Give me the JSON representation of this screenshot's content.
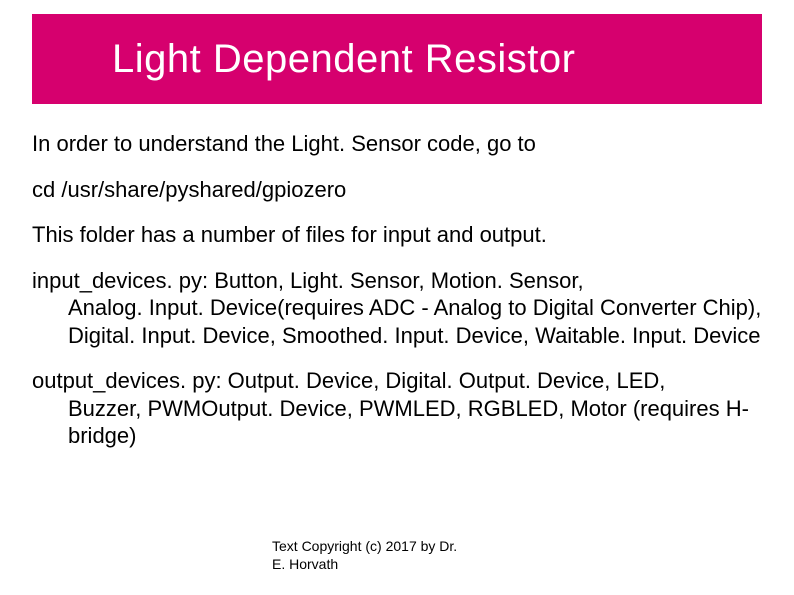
{
  "title_bar": {
    "background_color": "#d6006e",
    "title": "Light Dependent Resistor",
    "title_color": "#ffffff",
    "title_fontsize": 40
  },
  "content": {
    "fontsize": 22,
    "color": "#000000",
    "para1": "In order to understand the Light. Sensor code, go to",
    "para2": "cd /usr/share/pyshared/gpiozero",
    "para3": "This folder has a number of files for input and output.",
    "para4_lead": "input_devices. py: Button, Light. Sensor, Motion. Sensor,",
    "para4_cont": "Analog. Input. Device(requires ADC - Analog to Digital Converter Chip), Digital. Input. Device, Smoothed. Input. Device, Waitable. Input. Device",
    "para5_lead": "output_devices. py: Output. Device, Digital. Output. Device, LED,",
    "para5_cont": "Buzzer, PWMOutput. Device, PWMLED, RGBLED, Motor (requires H-bridge)"
  },
  "copyright": {
    "line1": "Text Copyright (c) 2017 by Dr.",
    "line2": "E. Horvath",
    "fontsize": 14
  }
}
